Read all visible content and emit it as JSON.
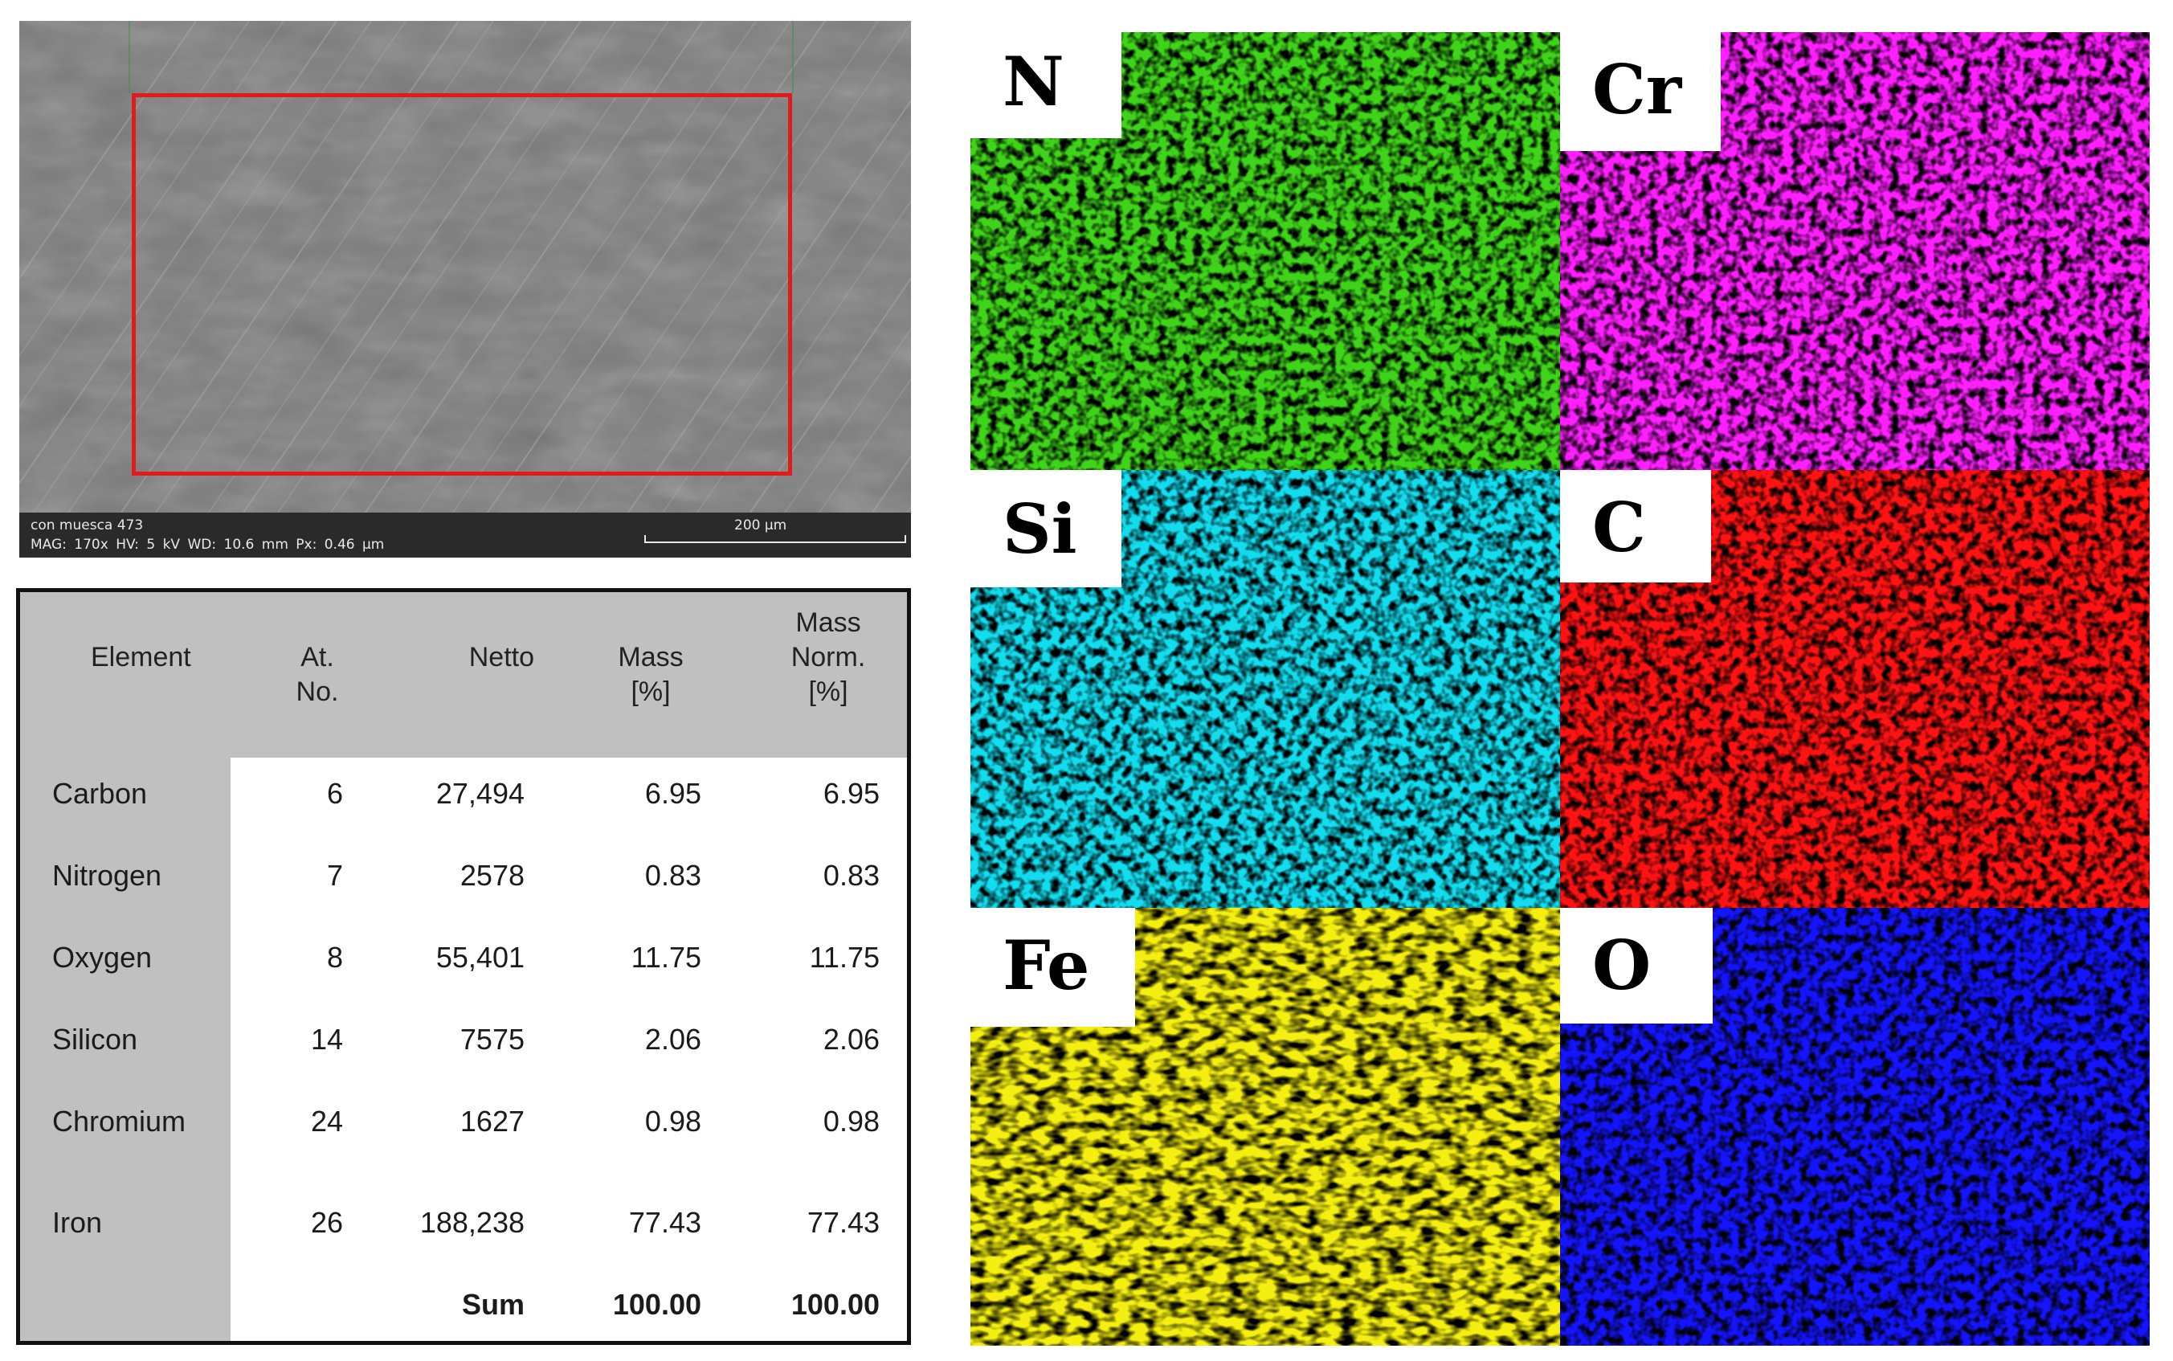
{
  "sem_image": {
    "sample": "con muesca 473",
    "params": "MAG: 170x   HV: 5 kV   WD: 10.6 mm   Px: 0.46 µm",
    "scale_bar": "200 µm",
    "roi_color": "#e11b1b"
  },
  "eds_table": {
    "headers": [
      "Element",
      "At.\nNo.",
      "Netto",
      "Mass\n[%]",
      "Mass\nNorm.\n[%]"
    ],
    "rows": [
      {
        "element": "Carbon",
        "at_no": "6",
        "netto": "27,494",
        "mass": "6.95",
        "mass_norm": "6.95"
      },
      {
        "element": "Nitrogen",
        "at_no": "7",
        "netto": "2578",
        "mass": "0.83",
        "mass_norm": "0.83"
      },
      {
        "element": "Oxygen",
        "at_no": "8",
        "netto": "55,401",
        "mass": "11.75",
        "mass_norm": "11.75"
      },
      {
        "element": "Silicon",
        "at_no": "14",
        "netto": "7575",
        "mass": "2.06",
        "mass_norm": "2.06"
      },
      {
        "element": "Chromium",
        "at_no": "24",
        "netto": "1627",
        "mass": "0.98",
        "mass_norm": "0.98"
      },
      {
        "element": "Iron",
        "at_no": "26",
        "netto": "188,238",
        "mass": "77.43",
        "mass_norm": "77.43"
      }
    ],
    "sum": {
      "label": "Sum",
      "mass": "100.00",
      "mass_norm": "100.00"
    }
  },
  "maps": [
    {
      "label": "N",
      "color": "#3fd41a"
    },
    {
      "label": "Cr",
      "color": "#ff1fff"
    },
    {
      "label": "Si",
      "color": "#12dced"
    },
    {
      "label": "C",
      "color": "#ff1212"
    },
    {
      "label": "Fe",
      "color": "#f4ef10"
    },
    {
      "label": "O",
      "color": "#1414ff"
    }
  ]
}
